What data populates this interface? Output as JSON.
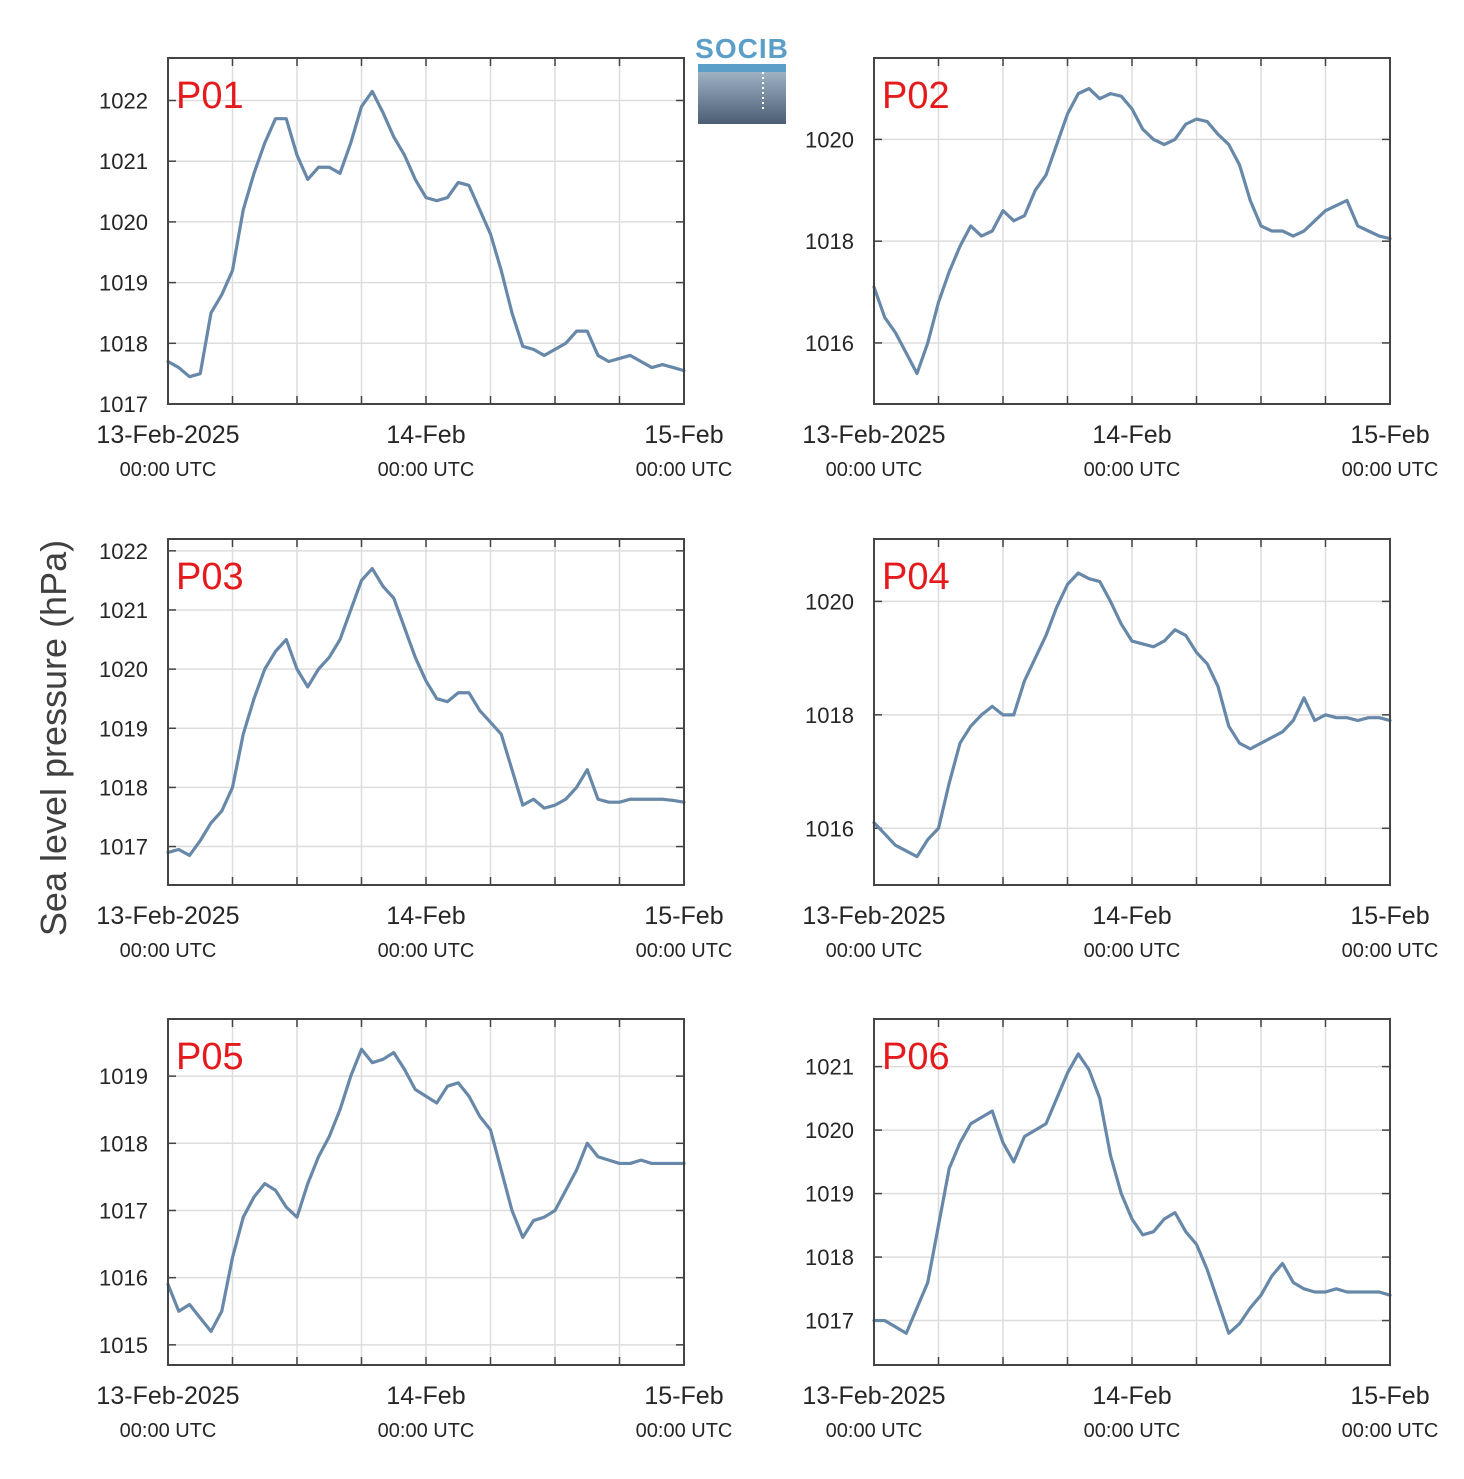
{
  "figure": {
    "ylabel": "Sea level pressure (hPa)",
    "logo_text": "SOCIB",
    "colors": {
      "line": "#6788a8",
      "grid": "#dddddd",
      "axis": "#444444",
      "label": "#e41a1c",
      "logo": "#5b9fc9"
    }
  },
  "chart_data": [
    {
      "type": "line",
      "title": "P01",
      "xticks": [
        {
          "t": 0,
          "label": "13-Feb-2025",
          "sub": "00:00 UTC"
        },
        {
          "t": 24,
          "label": "14-Feb",
          "sub": "00:00 UTC"
        },
        {
          "t": 48,
          "label": "15-Feb",
          "sub": "00:00 UTC"
        }
      ],
      "xlim": [
        0,
        48
      ],
      "ylim": [
        1017,
        1022.7
      ],
      "yticks": [
        1017,
        1018,
        1019,
        1020,
        1021,
        1022
      ],
      "series": [
        {
          "x": [
            0,
            1,
            2,
            3,
            4,
            5,
            6,
            7,
            8,
            9,
            10,
            11,
            12,
            13,
            14,
            15,
            16,
            17,
            18,
            19,
            20,
            21,
            22,
            23,
            24,
            25,
            26,
            27,
            28,
            29,
            30,
            31,
            32,
            33,
            34,
            35,
            36,
            37,
            38,
            39,
            40,
            41,
            42,
            43,
            44,
            45,
            46,
            47,
            48
          ],
          "y": [
            1017.7,
            1017.6,
            1017.45,
            1017.5,
            1018.5,
            1018.8,
            1019.2,
            1020.2,
            1020.8,
            1021.3,
            1021.7,
            1021.7,
            1021.1,
            1020.7,
            1020.9,
            1020.9,
            1020.8,
            1021.3,
            1021.9,
            1022.15,
            1021.8,
            1021.4,
            1021.1,
            1020.7,
            1020.4,
            1020.35,
            1020.4,
            1020.65,
            1020.6,
            1020.2,
            1019.8,
            1019.2,
            1018.5,
            1017.95,
            1017.9,
            1017.8,
            1017.9,
            1018.0,
            1018.2,
            1018.2,
            1017.8,
            1017.7,
            1017.75,
            1017.8,
            1017.7,
            1017.6,
            1017.65,
            1017.6,
            1017.55
          ]
        }
      ]
    },
    {
      "type": "line",
      "title": "P02",
      "xticks": [
        {
          "t": 0,
          "label": "13-Feb-2025",
          "sub": "00:00 UTC"
        },
        {
          "t": 24,
          "label": "14-Feb",
          "sub": "00:00 UTC"
        },
        {
          "t": 48,
          "label": "15-Feb",
          "sub": "00:00 UTC"
        }
      ],
      "xlim": [
        0,
        48
      ],
      "ylim": [
        1014.8,
        1021.6
      ],
      "yticks": [
        1016,
        1018,
        1020
      ],
      "series": [
        {
          "x": [
            0,
            1,
            2,
            3,
            4,
            5,
            6,
            7,
            8,
            9,
            10,
            11,
            12,
            13,
            14,
            15,
            16,
            17,
            18,
            19,
            20,
            21,
            22,
            23,
            24,
            25,
            26,
            27,
            28,
            29,
            30,
            31,
            32,
            33,
            34,
            35,
            36,
            37,
            38,
            39,
            40,
            41,
            42,
            43,
            44,
            45,
            46,
            47,
            48
          ],
          "y": [
            1017.1,
            1016.5,
            1016.2,
            1015.8,
            1015.4,
            1016.0,
            1016.8,
            1017.4,
            1017.9,
            1018.3,
            1018.1,
            1018.2,
            1018.6,
            1018.4,
            1018.5,
            1019.0,
            1019.3,
            1019.9,
            1020.5,
            1020.9,
            1021.0,
            1020.8,
            1020.9,
            1020.85,
            1020.6,
            1020.2,
            1020.0,
            1019.9,
            1020.0,
            1020.3,
            1020.4,
            1020.35,
            1020.1,
            1019.9,
            1019.5,
            1018.8,
            1018.3,
            1018.2,
            1018.2,
            1018.1,
            1018.2,
            1018.4,
            1018.6,
            1018.7,
            1018.8,
            1018.3,
            1018.2,
            1018.1,
            1018.05
          ]
        }
      ]
    },
    {
      "type": "line",
      "title": "P03",
      "xticks": [
        {
          "t": 0,
          "label": "13-Feb-2025",
          "sub": "00:00 UTC"
        },
        {
          "t": 24,
          "label": "14-Feb",
          "sub": "00:00 UTC"
        },
        {
          "t": 48,
          "label": "15-Feb",
          "sub": "00:00 UTC"
        }
      ],
      "xlim": [
        0,
        48
      ],
      "ylim": [
        1016.35,
        1022.2
      ],
      "yticks": [
        1017,
        1018,
        1019,
        1020,
        1021,
        1022
      ],
      "series": [
        {
          "x": [
            0,
            1,
            2,
            3,
            4,
            5,
            6,
            7,
            8,
            9,
            10,
            11,
            12,
            13,
            14,
            15,
            16,
            17,
            18,
            19,
            20,
            21,
            22,
            23,
            24,
            25,
            26,
            27,
            28,
            29,
            30,
            31,
            32,
            33,
            34,
            35,
            36,
            37,
            38,
            39,
            40,
            41,
            42,
            43,
            44,
            45,
            46,
            47,
            48
          ],
          "y": [
            1016.9,
            1016.95,
            1016.85,
            1017.1,
            1017.4,
            1017.6,
            1018.0,
            1018.9,
            1019.5,
            1020.0,
            1020.3,
            1020.5,
            1020.0,
            1019.7,
            1020.0,
            1020.2,
            1020.5,
            1021.0,
            1021.5,
            1021.7,
            1021.4,
            1021.2,
            1020.7,
            1020.2,
            1019.8,
            1019.5,
            1019.45,
            1019.6,
            1019.6,
            1019.3,
            1019.1,
            1018.9,
            1018.3,
            1017.7,
            1017.8,
            1017.65,
            1017.7,
            1017.8,
            1018.0,
            1018.3,
            1017.8,
            1017.75,
            1017.75,
            1017.8,
            1017.8,
            1017.8,
            1017.8,
            1017.78,
            1017.75
          ]
        }
      ]
    },
    {
      "type": "line",
      "title": "P04",
      "xticks": [
        {
          "t": 0,
          "label": "13-Feb-2025",
          "sub": "00:00 UTC"
        },
        {
          "t": 24,
          "label": "14-Feb",
          "sub": "00:00 UTC"
        },
        {
          "t": 48,
          "label": "15-Feb",
          "sub": "00:00 UTC"
        }
      ],
      "xlim": [
        0,
        48
      ],
      "ylim": [
        1015.0,
        1021.1
      ],
      "yticks": [
        1016,
        1018,
        1020
      ],
      "series": [
        {
          "x": [
            0,
            1,
            2,
            3,
            4,
            5,
            6,
            7,
            8,
            9,
            10,
            11,
            12,
            13,
            14,
            15,
            16,
            17,
            18,
            19,
            20,
            21,
            22,
            23,
            24,
            25,
            26,
            27,
            28,
            29,
            30,
            31,
            32,
            33,
            34,
            35,
            36,
            37,
            38,
            39,
            40,
            41,
            42,
            43,
            44,
            45,
            46,
            47,
            48
          ],
          "y": [
            1016.1,
            1015.9,
            1015.7,
            1015.6,
            1015.5,
            1015.8,
            1016.0,
            1016.8,
            1017.5,
            1017.8,
            1018.0,
            1018.15,
            1018.0,
            1018.0,
            1018.6,
            1019.0,
            1019.4,
            1019.9,
            1020.3,
            1020.5,
            1020.4,
            1020.35,
            1020.0,
            1019.6,
            1019.3,
            1019.25,
            1019.2,
            1019.3,
            1019.5,
            1019.4,
            1019.1,
            1018.9,
            1018.5,
            1017.8,
            1017.5,
            1017.4,
            1017.5,
            1017.6,
            1017.7,
            1017.9,
            1018.3,
            1017.9,
            1018.0,
            1017.95,
            1017.95,
            1017.9,
            1017.95,
            1017.95,
            1017.9
          ]
        }
      ]
    },
    {
      "type": "line",
      "title": "P05",
      "xticks": [
        {
          "t": 0,
          "label": "13-Feb-2025",
          "sub": "00:00 UTC"
        },
        {
          "t": 24,
          "label": "14-Feb",
          "sub": "00:00 UTC"
        },
        {
          "t": 48,
          "label": "15-Feb",
          "sub": "00:00 UTC"
        }
      ],
      "xlim": [
        0,
        48
      ],
      "ylim": [
        1014.7,
        1019.85
      ],
      "yticks": [
        1015,
        1016,
        1017,
        1018,
        1019
      ],
      "series": [
        {
          "x": [
            0,
            1,
            2,
            3,
            4,
            5,
            6,
            7,
            8,
            9,
            10,
            11,
            12,
            13,
            14,
            15,
            16,
            17,
            18,
            19,
            20,
            21,
            22,
            23,
            24,
            25,
            26,
            27,
            28,
            29,
            30,
            31,
            32,
            33,
            34,
            35,
            36,
            37,
            38,
            39,
            40,
            41,
            42,
            43,
            44,
            45,
            46,
            47,
            48
          ],
          "y": [
            1015.9,
            1015.5,
            1015.6,
            1015.4,
            1015.2,
            1015.5,
            1016.3,
            1016.9,
            1017.2,
            1017.4,
            1017.3,
            1017.05,
            1016.9,
            1017.4,
            1017.8,
            1018.1,
            1018.5,
            1019.0,
            1019.4,
            1019.2,
            1019.25,
            1019.35,
            1019.1,
            1018.8,
            1018.7,
            1018.6,
            1018.85,
            1018.9,
            1018.7,
            1018.4,
            1018.2,
            1017.6,
            1017.0,
            1016.6,
            1016.85,
            1016.9,
            1017.0,
            1017.3,
            1017.6,
            1018.0,
            1017.8,
            1017.75,
            1017.7,
            1017.7,
            1017.75,
            1017.7,
            1017.7,
            1017.7,
            1017.7
          ]
        }
      ]
    },
    {
      "type": "line",
      "title": "P06",
      "xticks": [
        {
          "t": 0,
          "label": "13-Feb-2025",
          "sub": "00:00 UTC"
        },
        {
          "t": 24,
          "label": "14-Feb",
          "sub": "00:00 UTC"
        },
        {
          "t": 48,
          "label": "15-Feb",
          "sub": "00:00 UTC"
        }
      ],
      "xlim": [
        0,
        48
      ],
      "ylim": [
        1016.3,
        1021.75
      ],
      "yticks": [
        1017,
        1018,
        1019,
        1020,
        1021
      ],
      "series": [
        {
          "x": [
            0,
            1,
            2,
            3,
            4,
            5,
            6,
            7,
            8,
            9,
            10,
            11,
            12,
            13,
            14,
            15,
            16,
            17,
            18,
            19,
            20,
            21,
            22,
            23,
            24,
            25,
            26,
            27,
            28,
            29,
            30,
            31,
            32,
            33,
            34,
            35,
            36,
            37,
            38,
            39,
            40,
            41,
            42,
            43,
            44,
            45,
            46,
            47,
            48
          ],
          "y": [
            1017.0,
            1017.0,
            1016.9,
            1016.8,
            1017.2,
            1017.6,
            1018.5,
            1019.4,
            1019.8,
            1020.1,
            1020.2,
            1020.3,
            1019.8,
            1019.5,
            1019.9,
            1020.0,
            1020.1,
            1020.5,
            1020.9,
            1021.2,
            1020.95,
            1020.5,
            1019.6,
            1019.0,
            1018.6,
            1018.35,
            1018.4,
            1018.6,
            1018.7,
            1018.4,
            1018.2,
            1017.8,
            1017.3,
            1016.8,
            1016.95,
            1017.2,
            1017.4,
            1017.7,
            1017.9,
            1017.6,
            1017.5,
            1017.45,
            1017.45,
            1017.5,
            1017.45,
            1017.45,
            1017.45,
            1017.45,
            1017.4
          ]
        }
      ]
    }
  ]
}
